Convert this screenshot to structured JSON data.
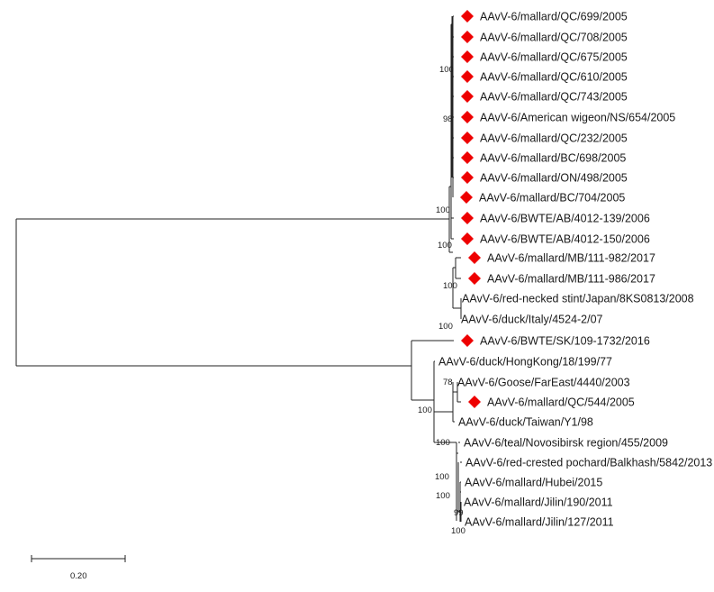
{
  "colors": {
    "marker": "#ee0000",
    "branch": "#222222"
  },
  "tree": {
    "taxa": [
      {
        "label": "AAvV-6/mallard/QC/699/2005",
        "marked": true
      },
      {
        "label": "AAvV-6/mallard/QC/708/2005",
        "marked": true
      },
      {
        "label": "AAvV-6/mallard/QC/675/2005",
        "marked": true
      },
      {
        "label": "AAvV-6/mallard/QC/610/2005",
        "marked": true
      },
      {
        "label": "AAvV-6/mallard/QC/743/2005",
        "marked": true
      },
      {
        "label": "AAvV-6/American wigeon/NS/654/2005",
        "marked": true
      },
      {
        "label": "AAvV-6/mallard/QC/232/2005",
        "marked": true
      },
      {
        "label": "AAvV-6/mallard/BC/698/2005",
        "marked": true
      },
      {
        "label": "AAvV-6/mallard/ON/498/2005",
        "marked": true
      },
      {
        "label": "AAvV-6/mallard/BC/704/2005",
        "marked": true
      },
      {
        "label": "AAvV-6/BWTE/AB/4012-139/2006",
        "marked": true
      },
      {
        "label": "AAvV-6/BWTE/AB/4012-150/2006",
        "marked": true
      },
      {
        "label": "AAvV-6/mallard/MB/111-982/2017",
        "marked": true
      },
      {
        "label": "AAvV-6/mallard/MB/111-986/2017",
        "marked": true
      },
      {
        "label": "AAvV-6/red-necked stint/Japan/8KS0813/2008",
        "marked": false
      },
      {
        "label": "AAvV-6/duck/Italy/4524-2/07",
        "marked": false
      },
      {
        "label": "AAvV-6/BWTE/SK/109-1732/2016",
        "marked": true
      },
      {
        "label": "AAvV-6/duck/HongKong/18/199/77",
        "marked": false
      },
      {
        "label": "AAvV-6/Goose/FarEast/4440/2003",
        "marked": false
      },
      {
        "label": "AAvV-6/mallard/QC/544/2005",
        "marked": true
      },
      {
        "label": "AAvV-6/duck/Taiwan/Y1/98",
        "marked": false
      },
      {
        "label": "AAvV-6/teal/Novosibirsk region/455/2009",
        "marked": false
      },
      {
        "label": "AAvV-6/red-crested pochard/Balkhash/5842/2013",
        "marked": false
      },
      {
        "label": "AAvV-6/mallard/Hubei/2015",
        "marked": false
      },
      {
        "label": "AAvV-6/mallard/Jilin/190/2011",
        "marked": false
      },
      {
        "label": "AAvV-6/mallard/Jilin/127/2011",
        "marked": false
      }
    ],
    "bootstrap": [
      "100",
      "98",
      "100",
      "100",
      "100",
      "100",
      "78",
      "100",
      "100",
      "100",
      "100",
      "99",
      "100"
    ],
    "scale": {
      "label": "0.20",
      "value": 0.2
    }
  }
}
